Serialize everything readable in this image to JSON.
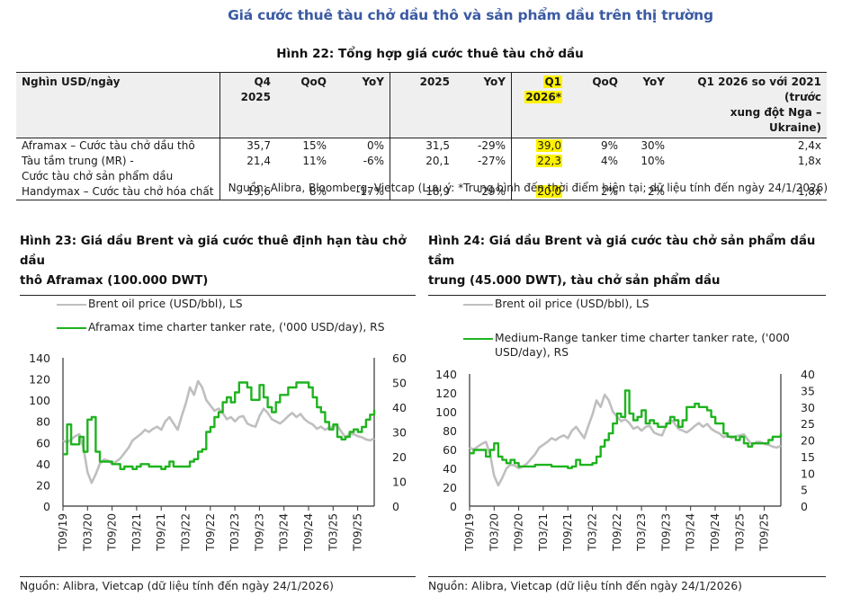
{
  "section_title": "Giá cước thuê tàu chở dầu thô và sản phẩm dầu trên thị trường",
  "figure22": {
    "title": "Hình 22: Tổng hợp giá cước thuê tàu chở dầu",
    "headers": {
      "unit": "Nghìn USD/ngày",
      "q4_2025_line1": "Q4",
      "q4_2025_line2": "2025",
      "qoq1": "QoQ",
      "yoy1": "YoY",
      "y2025": "2025",
      "yoy2": "YoY",
      "q1_2026_line1": "Q1",
      "q1_2026_line2": "2026*",
      "qoq2": "QoQ",
      "yoy3": "YoY",
      "vs2021_line1": "Q1 2026 so với 2021 (trước",
      "vs2021_line2": "xung đột Nga – Ukraine)"
    },
    "rows": [
      {
        "name_line1": "Aframax – Cước tàu chở dầu thô",
        "name_line2": "",
        "q4_2025": "35,7",
        "qoq": "15%",
        "yoy": "0%",
        "y2025": "31,5",
        "yoy_2025": "-29%",
        "q1_2026": "39,0",
        "qoq_q1": "9%",
        "yoy_q1": "30%",
        "vs2021": "2,4x"
      },
      {
        "name_line1": "Tàu tầm trung (MR) -",
        "name_line2": "Cước tàu chở sản phẩm dầu",
        "q4_2025": "21,4",
        "qoq": "11%",
        "yoy": "-6%",
        "y2025": "20,1",
        "yoy_2025": "-27%",
        "q1_2026": "22,3",
        "qoq_q1": "4%",
        "yoy_q1": "10%",
        "vs2021": "1,8x"
      },
      {
        "name_line1": "Handymax – Cước tàu chở hóa chất",
        "name_line2": "",
        "q4_2025": "19,6",
        "qoq": "8%",
        "yoy": "-17%",
        "y2025": "18,9",
        "yoy_2025": "-29%",
        "q1_2026": "20,0",
        "qoq_q1": "2%",
        "yoy_q1": "2%",
        "vs2021": "1,8x"
      }
    ],
    "highlight_color": "#fff200",
    "source": "Nguồn: Alibra, Bloomberg, Vietcap (Lưu ý: *Trung bình đến thời điểm hiện tại; dữ liệu tính đến ngày 24/1/2026)"
  },
  "figure23": {
    "title_line1": "Hình 23: Giá dầu Brent và giá cước thuê định hạn tàu chở dầu",
    "title_line2": "thô Aframax (100.000 DWT)",
    "source": "Nguồn: Alibra, Vietcap (dữ liệu tính đến ngày 24/1/2026)"
  },
  "figure24": {
    "title_line1": "Hình 24: Giá dầu Brent và giá cước tàu chở sản phẩm dầu tầm",
    "title_line2": "trung (45.000 DWT), tàu chở sản phẩm dầu",
    "source": "Nguồn: Alibra, Vietcap (dữ liệu tính đến ngày 24/1/2026)"
  },
  "chart_data": [
    {
      "type": "line",
      "title": "Hình 23: Giá dầu Brent và giá cước thuê định hạn tàu chở dầu thô Aframax (100.000 DWT)",
      "x_tick_labels": [
        "T09/19",
        "T03/20",
        "T09/20",
        "T03/21",
        "T09/21",
        "T03/22",
        "T09/22",
        "T03/23",
        "T09/23",
        "T03/24",
        "T09/24",
        "T03/25",
        "T09/25"
      ],
      "x_start": "2019-09",
      "x_end": "2026-01",
      "x_step": "month",
      "y_left": {
        "label": "Brent oil price (USD/bbl), LS",
        "range": [
          0,
          140
        ],
        "ticks": [
          0,
          20,
          40,
          60,
          80,
          100,
          120,
          140
        ]
      },
      "y_right": {
        "label": "('000 USD/day), RS",
        "range": [
          0,
          60
        ],
        "ticks": [
          0,
          10,
          20,
          30,
          40,
          50,
          60
        ]
      },
      "legend_placement": "top-left",
      "grid": false,
      "series": [
        {
          "name": "Brent oil price (USD/bbl), LS",
          "axis": "left",
          "color": "#bfbfbf",
          "values": [
            62,
            60,
            63,
            66,
            68,
            55,
            32,
            22,
            30,
            40,
            44,
            43,
            40,
            42,
            45,
            50,
            55,
            62,
            65,
            68,
            72,
            70,
            73,
            75,
            72,
            80,
            84,
            78,
            72,
            85,
            97,
            112,
            105,
            118,
            112,
            100,
            95,
            90,
            92,
            88,
            82,
            84,
            80,
            84,
            85,
            78,
            76,
            75,
            85,
            92,
            88,
            82,
            80,
            78,
            81,
            85,
            88,
            84,
            87,
            82,
            79,
            77,
            73,
            75,
            72,
            74,
            75,
            76,
            70,
            65,
            68,
            68,
            66,
            65,
            63,
            62,
            64
          ]
        },
        {
          "name": "Aframax time charter tanker rate, ('000 USD/day), RS",
          "axis": "right",
          "color": "#1fb31f",
          "values": [
            21,
            33,
            25,
            25,
            28,
            22,
            35,
            36,
            22,
            18,
            18,
            18,
            17,
            17,
            15,
            16,
            16,
            15,
            16,
            17,
            17,
            16,
            16,
            16,
            15,
            16,
            18,
            16,
            16,
            16,
            16,
            18,
            19,
            22,
            23,
            30,
            32,
            36,
            38,
            42,
            44,
            42,
            46,
            50,
            50,
            48,
            43,
            43,
            49,
            44,
            40,
            38,
            42,
            45,
            45,
            48,
            48,
            50,
            50,
            50,
            48,
            44,
            40,
            38,
            34,
            31,
            33,
            28,
            27,
            28,
            30,
            31,
            30,
            32,
            35,
            37,
            39
          ]
        }
      ]
    },
    {
      "type": "line",
      "title": "Hình 24: Giá dầu Brent và giá cước tàu chở sản phẩm dầu tầm trung (45.000 DWT), tàu chở sản phẩm dầu",
      "x_tick_labels": [
        "T09/19",
        "T03/20",
        "T09/20",
        "T03/21",
        "T09/21",
        "T03/22",
        "T09/22",
        "T03/23",
        "T09/23",
        "T03/24",
        "T09/24",
        "T03/25",
        "T09/25"
      ],
      "x_start": "2019-09",
      "x_end": "2026-01",
      "x_step": "month",
      "y_left": {
        "label": "Brent oil price (USD/bbl), LS",
        "range": [
          0,
          140
        ],
        "ticks": [
          0,
          20,
          40,
          60,
          80,
          100,
          120,
          140
        ]
      },
      "y_right": {
        "label": "('000 USD/day), RS",
        "range": [
          0,
          40
        ],
        "ticks": [
          0,
          5,
          10,
          15,
          20,
          25,
          30,
          35,
          40
        ]
      },
      "legend_placement": "top-left",
      "grid": false,
      "series": [
        {
          "name": "Brent oil price (USD/bbl), LS",
          "axis": "left",
          "color": "#bfbfbf",
          "values": [
            62,
            60,
            63,
            66,
            68,
            55,
            32,
            22,
            30,
            40,
            44,
            43,
            40,
            42,
            45,
            50,
            55,
            62,
            65,
            68,
            72,
            70,
            73,
            75,
            72,
            80,
            84,
            78,
            72,
            85,
            97,
            112,
            105,
            118,
            112,
            100,
            95,
            90,
            92,
            88,
            82,
            84,
            80,
            84,
            85,
            78,
            76,
            75,
            85,
            92,
            88,
            82,
            80,
            78,
            81,
            85,
            88,
            84,
            87,
            82,
            79,
            77,
            73,
            75,
            72,
            74,
            75,
            76,
            70,
            65,
            68,
            68,
            66,
            65,
            63,
            62,
            64
          ]
        },
        {
          "name": "Medium-Range tanker time charter tanker rate, ('000 USD/day), RS",
          "axis": "right",
          "color": "#1fb31f",
          "values": [
            16,
            17,
            17,
            17,
            15,
            17,
            19,
            15,
            14,
            13,
            14,
            13,
            12,
            12,
            12,
            12,
            12.5,
            12.5,
            12.5,
            12.5,
            12,
            12,
            12,
            12,
            11.5,
            12,
            14,
            12.5,
            12.5,
            12.5,
            13,
            15,
            18,
            20,
            22,
            25,
            28,
            27,
            35,
            28,
            26,
            27,
            29,
            25,
            26,
            25,
            24,
            24,
            25,
            27,
            26,
            24,
            26,
            30,
            30,
            31,
            30,
            30,
            29,
            27,
            25,
            25,
            22,
            21,
            21,
            20,
            21,
            19,
            18,
            19,
            19,
            19,
            19,
            20,
            21,
            21,
            22
          ]
        }
      ]
    }
  ]
}
